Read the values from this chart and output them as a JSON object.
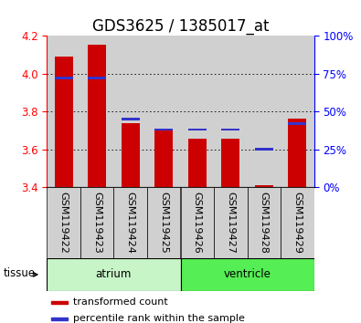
{
  "title": "GDS3625 / 1385017_at",
  "samples": [
    "GSM119422",
    "GSM119423",
    "GSM119424",
    "GSM119425",
    "GSM119426",
    "GSM119427",
    "GSM119428",
    "GSM119429"
  ],
  "red_top": [
    4.09,
    4.15,
    3.74,
    3.71,
    3.655,
    3.655,
    3.41,
    3.76
  ],
  "red_bottom": [
    3.4,
    3.4,
    3.4,
    3.4,
    3.4,
    3.4,
    3.4,
    3.4
  ],
  "blue_value": [
    72,
    72,
    45,
    38,
    38,
    38,
    25,
    42
  ],
  "ylim_left": [
    3.4,
    4.2
  ],
  "ylim_right": [
    0,
    100
  ],
  "yticks_left": [
    3.4,
    3.6,
    3.8,
    4.0,
    4.2
  ],
  "yticks_right": [
    0,
    25,
    50,
    75,
    100
  ],
  "ytick_labels_right": [
    "0%",
    "25%",
    "50%",
    "75%",
    "100%"
  ],
  "bar_width": 0.55,
  "red_color": "#cc0000",
  "blue_color": "#3333cc",
  "atrium_color": "#c8f5c8",
  "ventricle_color": "#55ee55",
  "col_bg_color": "#d0d0d0",
  "legend_items": [
    {
      "color": "#cc0000",
      "label": "transformed count"
    },
    {
      "color": "#3333cc",
      "label": "percentile rank within the sample"
    }
  ],
  "title_fontsize": 12,
  "tick_fontsize": 8.5,
  "label_fontsize": 8.5,
  "atrium_samples": [
    0,
    1,
    2,
    3
  ],
  "ventricle_samples": [
    4,
    5,
    6,
    7
  ]
}
